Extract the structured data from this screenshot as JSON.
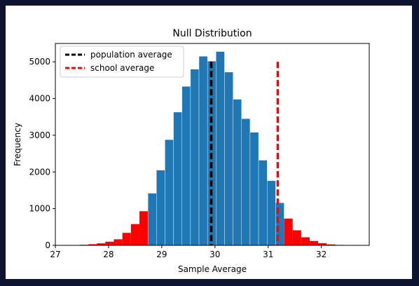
{
  "chart_data": {
    "type": "bar",
    "title": "Null Distribution",
    "xlabel": "Sample Average",
    "ylabel": "Frequency",
    "xlim": [
      27,
      32.9
    ],
    "ylim": [
      0,
      5500
    ],
    "xticks": [
      "27",
      "28",
      "29",
      "30",
      "31",
      "32"
    ],
    "yticks": [
      "0",
      "1000",
      "2000",
      "3000",
      "4000",
      "5000"
    ],
    "grid": false,
    "legend_position": "top-left",
    "bin_width": 0.16,
    "colors": {
      "center": "#1f77b4",
      "tails": "#ff0000",
      "population_line": "#000000",
      "school_line": "#ff0000"
    },
    "bins": [
      {
        "x0": 27.3,
        "value": 5,
        "tail": true
      },
      {
        "x0": 27.46,
        "value": 15,
        "tail": true
      },
      {
        "x0": 27.62,
        "value": 30,
        "tail": true
      },
      {
        "x0": 27.78,
        "value": 55,
        "tail": true
      },
      {
        "x0": 27.94,
        "value": 100,
        "tail": true
      },
      {
        "x0": 28.1,
        "value": 165,
        "tail": true
      },
      {
        "x0": 28.26,
        "value": 340,
        "tail": true
      },
      {
        "x0": 28.42,
        "value": 580,
        "tail": true
      },
      {
        "x0": 28.58,
        "value": 930,
        "tail": true
      },
      {
        "x0": 28.74,
        "value": 1420,
        "tail": false
      },
      {
        "x0": 28.9,
        "value": 2050,
        "tail": false
      },
      {
        "x0": 29.06,
        "value": 2880,
        "tail": false
      },
      {
        "x0": 29.22,
        "value": 3630,
        "tail": false
      },
      {
        "x0": 29.38,
        "value": 4330,
        "tail": false
      },
      {
        "x0": 29.54,
        "value": 4800,
        "tail": false
      },
      {
        "x0": 29.7,
        "value": 5150,
        "tail": false
      },
      {
        "x0": 29.86,
        "value": 5020,
        "tail": false
      },
      {
        "x0": 30.02,
        "value": 5280,
        "tail": false
      },
      {
        "x0": 30.18,
        "value": 4720,
        "tail": false
      },
      {
        "x0": 30.34,
        "value": 3980,
        "tail": false
      },
      {
        "x0": 30.5,
        "value": 3450,
        "tail": false
      },
      {
        "x0": 30.66,
        "value": 3080,
        "tail": false
      },
      {
        "x0": 30.82,
        "value": 2320,
        "tail": false
      },
      {
        "x0": 30.98,
        "value": 1760,
        "tail": false
      },
      {
        "x0": 31.14,
        "value": 1160,
        "tail": false
      },
      {
        "x0": 31.3,
        "value": 730,
        "tail": true
      },
      {
        "x0": 31.46,
        "value": 410,
        "tail": true
      },
      {
        "x0": 31.62,
        "value": 220,
        "tail": true
      },
      {
        "x0": 31.78,
        "value": 120,
        "tail": true
      },
      {
        "x0": 31.94,
        "value": 60,
        "tail": true
      },
      {
        "x0": 32.1,
        "value": 25,
        "tail": true
      },
      {
        "x0": 32.26,
        "value": 12,
        "tail": true
      },
      {
        "x0": 32.42,
        "value": 6,
        "tail": true
      },
      {
        "x0": 32.58,
        "value": 3,
        "tail": true
      }
    ],
    "vlines": [
      {
        "name": "population average",
        "x": 29.93,
        "y_top": 5000,
        "color": "#000000"
      },
      {
        "name": "school average",
        "x": 31.18,
        "y_top": 5000,
        "color": "#ff0000"
      }
    ]
  }
}
